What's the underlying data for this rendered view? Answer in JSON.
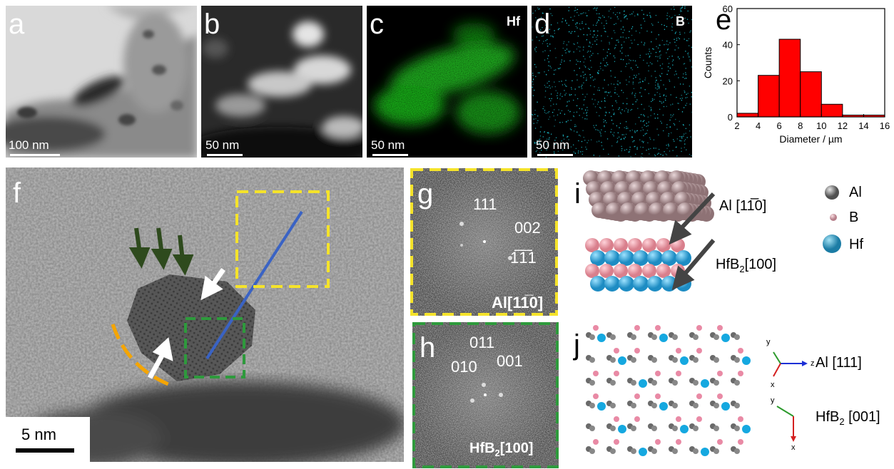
{
  "panels": {
    "a": {
      "label": "a",
      "scale": "100 nm"
    },
    "b": {
      "label": "b",
      "scale": "50 nm"
    },
    "c": {
      "label": "c",
      "scale": "50 nm",
      "element": "Hf",
      "color": "#1fd01f"
    },
    "d": {
      "label": "d",
      "scale": "50 nm",
      "element": "B",
      "color": "#1ec8d8"
    },
    "e": {
      "label": "e"
    },
    "f": {
      "label": "f",
      "scale": "5 nm"
    },
    "g": {
      "label": "g",
      "spots": [
        "111",
        "002",
        "1̅1̅1"
      ],
      "zone": "Al[11̅0]",
      "frame_color": "#f5e32a"
    },
    "h": {
      "label": "h",
      "spots": [
        "011",
        "010",
        "001"
      ],
      "zone_main": "HfB",
      "zone_sub": "2",
      "zone_tail": "[100]",
      "frame_color": "#2e9a3c"
    },
    "i": {
      "label": "i",
      "al_dir": "Al [11̅0]",
      "hf_dir_main": "HfB",
      "hf_dir_sub": "2",
      "hf_dir_tail": "[100]",
      "legend": [
        "Al",
        "B",
        "Hf"
      ]
    },
    "j": {
      "label": "j",
      "al_dir": "Al [111]",
      "hf_dir_main": "HfB",
      "hf_dir_sub": "2",
      "hf_dir_tail": " [001]",
      "axes1": [
        "y",
        "z",
        "x"
      ],
      "axes2": [
        "y",
        "x"
      ]
    }
  },
  "chart_data": {
    "type": "bar",
    "xlabel": "Diameter / µm",
    "ylabel": "Counts",
    "bins": [
      [
        2,
        4
      ],
      [
        4,
        6
      ],
      [
        6,
        8
      ],
      [
        8,
        10
      ],
      [
        10,
        12
      ],
      [
        12,
        14
      ],
      [
        14,
        16
      ]
    ],
    "values": [
      2,
      23,
      43,
      25,
      7,
      1,
      1
    ],
    "xlim": [
      2,
      16
    ],
    "ylim": [
      0,
      60
    ],
    "xticks": [
      2,
      4,
      6,
      8,
      10,
      12,
      14,
      16
    ],
    "yticks": [
      0,
      20,
      40,
      60
    ],
    "bar_color": "#ff0000"
  }
}
